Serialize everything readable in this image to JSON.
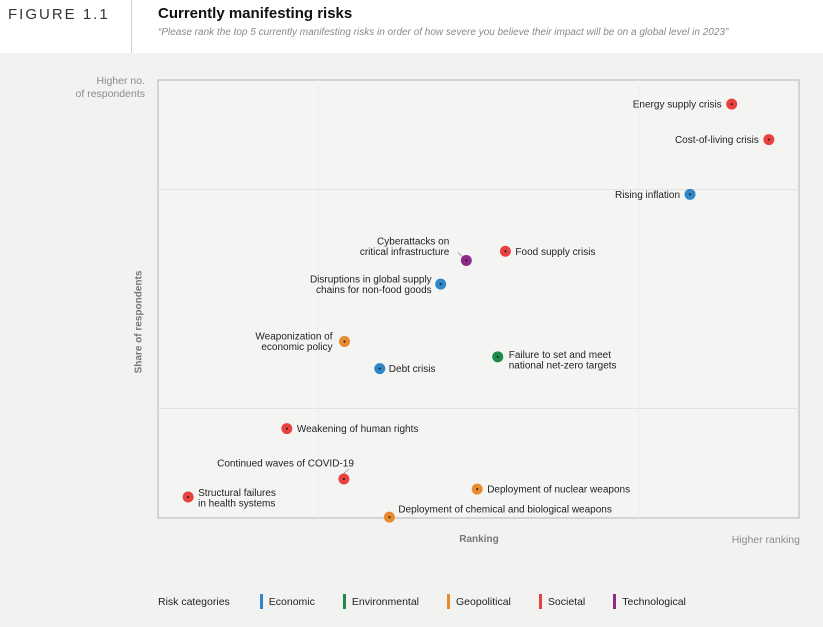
{
  "figure_label": "FIGURE 1.1",
  "title": "Currently manifesting risks",
  "subtitle": "“Please rank the top 5 currently manifesting risks in order of how severe you believe their impact will be on a global level in 2023”",
  "y_axis_top": [
    "Higher no.",
    "of respondents"
  ],
  "y_axis_label": "Share of respondents",
  "x_axis_label": "Ranking",
  "x_axis_right": "Higher ranking",
  "legend": {
    "title": "Risk categories",
    "items": [
      {
        "label": "Economic",
        "color": "#2f86c9"
      },
      {
        "label": "Environmental",
        "color": "#1e8a4c"
      },
      {
        "label": "Geopolitical",
        "color": "#ea8a2e"
      },
      {
        "label": "Societal",
        "color": "#e8413f"
      },
      {
        "label": "Technological",
        "color": "#8e2b86"
      }
    ]
  },
  "chart_data": {
    "type": "scatter",
    "xlabel": "Ranking",
    "ylabel": "Share of respondents",
    "xlim": [
      0,
      100
    ],
    "ylim": [
      0,
      100
    ],
    "grid": true,
    "categories": [
      "Economic",
      "Environmental",
      "Geopolitical",
      "Societal",
      "Technological"
    ],
    "points": [
      {
        "label": "Energy supply crisis",
        "category": "Societal",
        "x": 89.5,
        "y": 94.5
      },
      {
        "label": "Cost-of-living crisis",
        "category": "Societal",
        "x": 95.3,
        "y": 86.4
      },
      {
        "label": "Rising inflation",
        "category": "Economic",
        "x": 83.0,
        "y": 73.9
      },
      {
        "label": "Food supply crisis",
        "category": "Societal",
        "x": 54.2,
        "y": 60.9
      },
      {
        "label": "Cyberattacks on critical infrastructure",
        "category": "Technological",
        "x": 48.1,
        "y": 58.8
      },
      {
        "label": "Disruptions in global supply chains for non-food goods",
        "category": "Economic",
        "x": 44.1,
        "y": 53.4
      },
      {
        "label": "Weaponization of economic policy",
        "category": "Geopolitical",
        "x": 29.1,
        "y": 40.3
      },
      {
        "label": "Failure to set and meet national net-zero targets",
        "category": "Environmental",
        "x": 53.0,
        "y": 36.8
      },
      {
        "label": "Debt crisis",
        "category": "Economic",
        "x": 34.6,
        "y": 34.1
      },
      {
        "label": "Weakening of human rights",
        "category": "Societal",
        "x": 20.1,
        "y": 20.4
      },
      {
        "label": "Continued waves of COVID-19",
        "category": "Societal",
        "x": 29.0,
        "y": 8.9
      },
      {
        "label": "Deployment of nuclear weapons",
        "category": "Geopolitical",
        "x": 49.8,
        "y": 6.6
      },
      {
        "label": "Structural failures in health systems",
        "category": "Societal",
        "x": 4.7,
        "y": 4.8
      },
      {
        "label": "Deployment of chemical and biological weapons",
        "category": "Geopolitical",
        "x": 36.1,
        "y": 0.2
      }
    ],
    "point_label_lines": [
      [
        "Energy supply crisis"
      ],
      [
        "Cost-of-living crisis"
      ],
      [
        "Rising inflation"
      ],
      [
        "Food supply crisis"
      ],
      [
        "Cyberattacks on",
        "critical infrastructure"
      ],
      [
        "Disruptions in global supply",
        "chains for non-food goods"
      ],
      [
        "Weaponization of",
        "economic policy"
      ],
      [
        "Failure to set and meet",
        "national net-zero targets"
      ],
      [
        "Debt crisis"
      ],
      [
        "Weakening of human rights"
      ],
      [
        "Continued waves of COVID-19"
      ],
      [
        "Deployment of nuclear weapons"
      ],
      [
        "Structural failures",
        "in health systems"
      ],
      [
        "Deployment of chemical and biological weapons"
      ]
    ]
  }
}
